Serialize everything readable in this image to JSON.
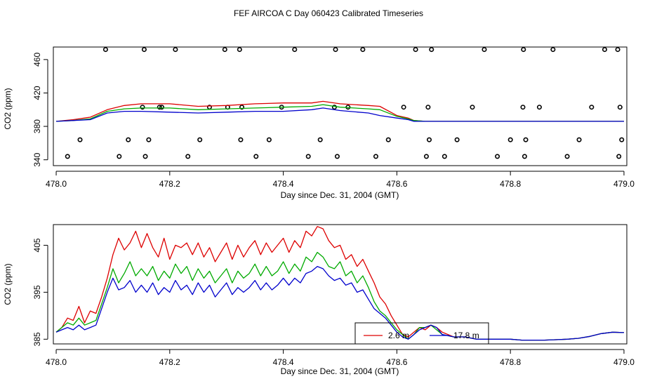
{
  "page": {
    "title": "FEF AIRCOA C  Day 060423  Calibrated Timeseries"
  },
  "colors": {
    "s26": "#dd0000",
    "s7": "#00aa00",
    "s18": "#0000cc",
    "axis": "#000000"
  },
  "chart_data": [
    {
      "type": "line",
      "title": "",
      "xlabel": "Day since Dec. 31, 2004 (GMT)",
      "ylabel": "CO2 (ppm)",
      "xlim": [
        477.995,
        479.005
      ],
      "ylim": [
        333,
        475
      ],
      "xticks": [
        478.0,
        478.2,
        478.4,
        478.6,
        478.8,
        479.0
      ],
      "xtick_labels": [
        "478.0",
        "478.2",
        "478.4",
        "478.6",
        "478.8",
        "479.0"
      ],
      "yticks": [
        340,
        380,
        420,
        460
      ],
      "ytick_labels": [
        "340",
        "380",
        "420",
        "460"
      ],
      "series": [
        {
          "key": "s26",
          "x": [
            478.0,
            478.03,
            478.06,
            478.09,
            478.12,
            478.15,
            478.2,
            478.25,
            478.3,
            478.35,
            478.4,
            478.45,
            478.47,
            478.5,
            478.55,
            478.57,
            478.6,
            478.62,
            478.63,
            478.65,
            478.7,
            478.8,
            478.9,
            479.0
          ],
          "y": [
            386,
            388,
            391,
            400,
            405,
            407,
            407,
            404,
            405,
            407,
            408,
            408,
            410,
            407,
            405,
            404,
            393,
            390,
            387,
            386,
            386,
            386,
            386,
            386
          ]
        },
        {
          "key": "s7",
          "x": [
            478.0,
            478.03,
            478.06,
            478.09,
            478.12,
            478.15,
            478.2,
            478.25,
            478.3,
            478.35,
            478.4,
            478.45,
            478.47,
            478.5,
            478.55,
            478.57,
            478.6,
            478.62,
            478.63,
            478.65,
            478.7,
            478.8,
            478.9,
            479.0
          ],
          "y": [
            386,
            387,
            389,
            398,
            401,
            402,
            402,
            400,
            401,
            402,
            403,
            404,
            406,
            403,
            401,
            400,
            392,
            389,
            387,
            386,
            386,
            386,
            386,
            386
          ]
        },
        {
          "key": "s18",
          "x": [
            478.0,
            478.03,
            478.06,
            478.09,
            478.12,
            478.15,
            478.2,
            478.25,
            478.3,
            478.35,
            478.4,
            478.45,
            478.47,
            478.5,
            478.55,
            478.57,
            478.6,
            478.62,
            478.63,
            478.65,
            478.7,
            478.8,
            478.9,
            479.0
          ],
          "y": [
            386,
            387,
            388,
            396,
            398,
            398,
            397,
            396,
            397,
            398,
            398,
            400,
            402,
            399,
            396,
            393,
            390,
            388,
            386,
            386,
            386,
            386,
            386,
            386
          ]
        }
      ],
      "markers": {
        "x": [
          478.02,
          478.042,
          478.087,
          478.111,
          478.127,
          478.152,
          478.155,
          478.157,
          478.163,
          478.182,
          478.186,
          478.21,
          478.232,
          478.253,
          478.27,
          478.297,
          478.302,
          478.323,
          478.325,
          478.327,
          478.352,
          478.375,
          478.397,
          478.42,
          478.444,
          478.465,
          478.49,
          478.492,
          478.495,
          478.514,
          478.54,
          478.563,
          478.585,
          478.612,
          478.633,
          478.652,
          478.655,
          478.657,
          478.661,
          478.684,
          478.706,
          478.733,
          478.754,
          478.777,
          478.8,
          478.822,
          478.823,
          478.825,
          478.827,
          478.851,
          478.875,
          478.9,
          478.921,
          478.943,
          478.966,
          478.989,
          478.991,
          478.993,
          478.996
        ],
        "y": [
          344,
          364,
          472,
          344,
          364,
          403,
          472,
          344,
          364,
          403,
          403,
          472,
          344,
          364,
          403,
          472,
          403,
          472,
          364,
          403,
          344,
          364,
          403,
          472,
          344,
          364,
          403,
          472,
          344,
          403,
          472,
          344,
          364,
          403,
          472,
          344,
          403,
          364,
          472,
          344,
          364,
          403,
          472,
          344,
          364,
          403,
          472,
          344,
          364,
          403,
          472,
          344,
          364,
          403,
          472,
          472,
          344,
          403,
          364
        ]
      }
    },
    {
      "type": "line",
      "title": "",
      "xlabel": "Day since Dec. 31, 2004 (GMT)",
      "ylabel": "CO2 (ppm)",
      "xlim": [
        477.995,
        479.005
      ],
      "ylim": [
        384.0,
        409.4
      ],
      "xticks": [
        478.0,
        478.2,
        478.4,
        478.6,
        478.8,
        479.0
      ],
      "xtick_labels": [
        "478.0",
        "478.2",
        "478.4",
        "478.6",
        "478.8",
        "479.0"
      ],
      "yticks": [
        385,
        395,
        405
      ],
      "ytick_labels": [
        "385",
        "395",
        "405"
      ],
      "legend": {
        "placement": "bottom-center",
        "entries": [
          {
            "key": "s26",
            "label": "2.6 m"
          },
          {
            "key": "s18",
            "label": "17.8 m"
          }
        ]
      },
      "series": [
        {
          "key": "s26",
          "x": [
            478.0,
            478.01,
            478.02,
            478.03,
            478.04,
            478.05,
            478.06,
            478.07,
            478.08,
            478.09,
            478.1,
            478.11,
            478.12,
            478.13,
            478.14,
            478.15,
            478.16,
            478.17,
            478.18,
            478.19,
            478.2,
            478.21,
            478.22,
            478.23,
            478.24,
            478.25,
            478.26,
            478.27,
            478.28,
            478.29,
            478.3,
            478.31,
            478.32,
            478.33,
            478.34,
            478.35,
            478.36,
            478.37,
            478.38,
            478.39,
            478.4,
            478.41,
            478.42,
            478.43,
            478.44,
            478.45,
            478.46,
            478.47,
            478.48,
            478.49,
            478.5,
            478.51,
            478.52,
            478.53,
            478.54,
            478.55,
            478.56,
            478.57,
            478.58,
            478.59,
            478.6,
            478.61,
            478.62,
            478.63,
            478.64,
            478.65,
            478.66,
            478.67,
            478.68,
            478.7,
            478.72,
            478.74,
            478.76,
            478.78,
            478.8,
            478.82,
            478.84,
            478.86,
            478.88,
            478.9,
            478.92,
            478.94,
            478.96,
            478.98,
            479.0
          ],
          "y": [
            386.5,
            387.5,
            389.5,
            389.0,
            392.0,
            388.5,
            391.0,
            390.5,
            394.0,
            398.0,
            403.0,
            406.5,
            404.0,
            405.5,
            408.0,
            404.5,
            407.5,
            404.5,
            402.5,
            406.5,
            402.0,
            405.0,
            404.5,
            405.5,
            403.0,
            405.5,
            402.5,
            404.5,
            401.5,
            403.5,
            405.5,
            402.0,
            405.0,
            402.5,
            404.5,
            406.0,
            403.0,
            405.5,
            403.5,
            405.0,
            406.5,
            403.5,
            406.0,
            404.5,
            408.0,
            407.0,
            409.0,
            408.5,
            406.0,
            404.5,
            405.0,
            402.0,
            403.0,
            400.5,
            402.0,
            399.5,
            397.0,
            394.0,
            392.5,
            390.0,
            388.0,
            386.0,
            385.5,
            386.5,
            387.5,
            387.0,
            388.0,
            387.5,
            386.5,
            385.5,
            385.5,
            385.0,
            385.0,
            385.0,
            385.0,
            384.8,
            384.8,
            384.8,
            384.9,
            385.0,
            385.2,
            385.6,
            386.2,
            386.5,
            386.4
          ]
        },
        {
          "key": "s7",
          "x": [
            478.0,
            478.01,
            478.02,
            478.03,
            478.04,
            478.05,
            478.06,
            478.07,
            478.08,
            478.09,
            478.1,
            478.11,
            478.12,
            478.13,
            478.14,
            478.15,
            478.16,
            478.17,
            478.18,
            478.19,
            478.2,
            478.21,
            478.22,
            478.23,
            478.24,
            478.25,
            478.26,
            478.27,
            478.28,
            478.29,
            478.3,
            478.31,
            478.32,
            478.33,
            478.34,
            478.35,
            478.36,
            478.37,
            478.38,
            478.39,
            478.4,
            478.41,
            478.42,
            478.43,
            478.44,
            478.45,
            478.46,
            478.47,
            478.48,
            478.49,
            478.5,
            478.51,
            478.52,
            478.53,
            478.54,
            478.55,
            478.56,
            478.57,
            478.58,
            478.59,
            478.6,
            478.61,
            478.62,
            478.63,
            478.64,
            478.65,
            478.66,
            478.67,
            478.68,
            478.7,
            478.72,
            478.74,
            478.76,
            478.78,
            478.8,
            478.82,
            478.84,
            478.86,
            478.88,
            478.9,
            478.92,
            478.94,
            478.96,
            478.98,
            479.0
          ],
          "y": [
            386.5,
            387.5,
            388.5,
            388.0,
            389.5,
            388.0,
            388.5,
            389.0,
            392.5,
            396.0,
            400.0,
            397.0,
            399.0,
            401.5,
            398.5,
            400.0,
            398.5,
            400.5,
            397.5,
            399.5,
            398.0,
            401.0,
            399.0,
            400.5,
            397.5,
            400.0,
            398.0,
            399.5,
            397.0,
            398.5,
            400.0,
            397.0,
            399.5,
            398.0,
            399.0,
            401.0,
            398.5,
            400.5,
            398.5,
            399.5,
            401.5,
            399.0,
            401.0,
            399.5,
            402.5,
            401.5,
            403.5,
            402.5,
            400.5,
            400.0,
            401.5,
            398.5,
            399.5,
            397.0,
            398.5,
            396.0,
            393.0,
            391.0,
            390.0,
            388.5,
            387.0,
            386.0,
            385.0,
            386.0,
            387.5,
            387.5,
            388.0,
            387.0,
            386.0,
            385.5,
            385.5,
            385.0,
            385.0,
            385.0,
            385.0,
            384.8,
            384.8,
            384.8,
            384.9,
            385.0,
            385.2,
            385.6,
            386.2,
            386.5,
            386.4
          ]
        },
        {
          "key": "s18",
          "x": [
            478.0,
            478.01,
            478.02,
            478.03,
            478.04,
            478.05,
            478.06,
            478.07,
            478.08,
            478.09,
            478.1,
            478.11,
            478.12,
            478.13,
            478.14,
            478.15,
            478.16,
            478.17,
            478.18,
            478.19,
            478.2,
            478.21,
            478.22,
            478.23,
            478.24,
            478.25,
            478.26,
            478.27,
            478.28,
            478.29,
            478.3,
            478.31,
            478.32,
            478.33,
            478.34,
            478.35,
            478.36,
            478.37,
            478.38,
            478.39,
            478.4,
            478.41,
            478.42,
            478.43,
            478.44,
            478.45,
            478.46,
            478.47,
            478.48,
            478.49,
            478.5,
            478.51,
            478.52,
            478.53,
            478.54,
            478.55,
            478.56,
            478.57,
            478.58,
            478.59,
            478.6,
            478.61,
            478.62,
            478.63,
            478.64,
            478.65,
            478.66,
            478.67,
            478.68,
            478.7,
            478.72,
            478.74,
            478.76,
            478.78,
            478.8,
            478.82,
            478.84,
            478.86,
            478.88,
            478.9,
            478.92,
            478.94,
            478.96,
            478.98,
            479.0
          ],
          "y": [
            386.5,
            387.0,
            387.5,
            387.0,
            388.0,
            387.0,
            387.5,
            388.0,
            391.5,
            395.0,
            398.0,
            395.5,
            396.0,
            397.5,
            395.0,
            396.5,
            395.0,
            397.0,
            394.5,
            396.0,
            395.0,
            397.5,
            395.5,
            396.5,
            394.5,
            397.0,
            395.0,
            396.5,
            394.0,
            395.5,
            397.0,
            394.5,
            396.0,
            395.0,
            396.0,
            397.5,
            395.5,
            397.0,
            395.5,
            396.5,
            398.0,
            396.5,
            398.0,
            397.0,
            399.0,
            399.5,
            400.5,
            400.0,
            398.5,
            397.5,
            398.0,
            396.5,
            397.0,
            395.0,
            395.5,
            393.5,
            391.5,
            390.5,
            389.5,
            388.0,
            386.5,
            385.5,
            385.0,
            386.0,
            387.0,
            387.5,
            388.0,
            387.5,
            386.0,
            385.5,
            385.5,
            385.0,
            385.0,
            385.0,
            385.0,
            384.8,
            384.8,
            384.8,
            384.9,
            385.0,
            385.2,
            385.6,
            386.2,
            386.5,
            386.4
          ]
        }
      ]
    }
  ]
}
